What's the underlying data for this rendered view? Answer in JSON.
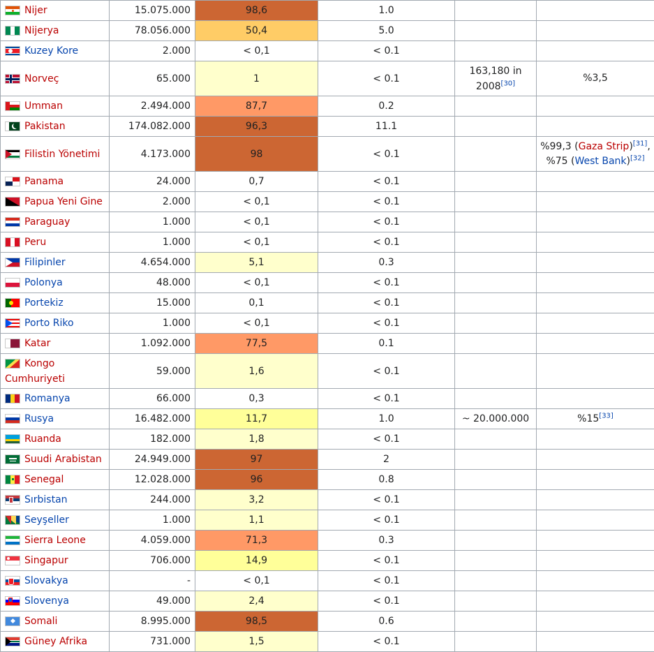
{
  "colors": {
    "scale": {
      "very_high": "#cc6633",
      "high": "#ff9966",
      "medium": "#ffcc66",
      "low": "#ffff99",
      "very_low": "#ffffcc",
      "none": "#ffffff"
    }
  },
  "rows": [
    {
      "country": "Nijer",
      "red": true,
      "flag_icon": "niger-flag-icon",
      "population": "15.075.000",
      "percent": "98,6",
      "shade": "very_high",
      "world": "1.0",
      "c5": "",
      "c6": ""
    },
    {
      "country": "Nijerya",
      "red": true,
      "flag_icon": "nigeria-flag-icon",
      "population": "78.056.000",
      "percent": "50,4",
      "shade": "medium",
      "world": "5.0",
      "c5": "",
      "c6": ""
    },
    {
      "country": "Kuzey Kore",
      "red": false,
      "flag_icon": "north-korea-flag-icon",
      "population": "2.000",
      "percent": "< 0,1",
      "shade": "none",
      "world": "< 0.1",
      "c5": "",
      "c6": ""
    },
    {
      "country": "Norveç",
      "red": true,
      "flag_icon": "norway-flag-icon",
      "population": "65.000",
      "percent": "1",
      "shade": "very_low",
      "world": "< 0.1",
      "c5": "163,180 in 2008",
      "c5_ref": "[30]",
      "c6": "%3,5",
      "tall": true
    },
    {
      "country": "Umman",
      "red": true,
      "flag_icon": "oman-flag-icon",
      "population": "2.494.000",
      "percent": "87,7",
      "shade": "high",
      "world": "0.2",
      "c5": "",
      "c6": ""
    },
    {
      "country": "Pakistan",
      "red": true,
      "flag_icon": "pakistan-flag-icon",
      "population": "174.082.000",
      "percent": "96,3",
      "shade": "very_high",
      "world": "11.1",
      "c5": "",
      "c6": ""
    },
    {
      "country": "Filistin Yönetimi",
      "red": true,
      "flag_icon": "palestine-flag-icon",
      "population": "4.173.000",
      "percent": "98",
      "shade": "very_high",
      "world": "< 0.1",
      "c5": "",
      "tall": true,
      "c6_parts": {
        "p1": "%99,3 (",
        "l1": "Gaza Strip",
        "p2": ")",
        "r1": "[31]",
        "p3": ",",
        "p4": "%75 (",
        "l2": "West Bank",
        "p5": ")",
        "r2": "[32]"
      }
    },
    {
      "country": "Panama",
      "red": true,
      "flag_icon": "panama-flag-icon",
      "population": "24.000",
      "percent": "0,7",
      "shade": "none",
      "world": "< 0.1",
      "c5": "",
      "c6": ""
    },
    {
      "country": "Papua Yeni Gine",
      "red": true,
      "flag_icon": "papua-new-guinea-flag-icon",
      "population": "2.000",
      "percent": "< 0,1",
      "shade": "none",
      "world": "< 0.1",
      "c5": "",
      "c6": ""
    },
    {
      "country": "Paraguay",
      "red": true,
      "flag_icon": "paraguay-flag-icon",
      "population": "1.000",
      "percent": "< 0,1",
      "shade": "none",
      "world": "< 0.1",
      "c5": "",
      "c6": ""
    },
    {
      "country": "Peru",
      "red": true,
      "flag_icon": "peru-flag-icon",
      "population": "1.000",
      "percent": "< 0,1",
      "shade": "none",
      "world": "< 0.1",
      "c5": "",
      "c6": ""
    },
    {
      "country": "Filipinler",
      "red": false,
      "flag_icon": "philippines-flag-icon",
      "population": "4.654.000",
      "percent": "5,1",
      "shade": "very_low",
      "world": "0.3",
      "c5": "",
      "c6": ""
    },
    {
      "country": "Polonya",
      "red": false,
      "flag_icon": "poland-flag-icon",
      "population": "48.000",
      "percent": "< 0,1",
      "shade": "none",
      "world": "< 0.1",
      "c5": "",
      "c6": ""
    },
    {
      "country": "Portekiz",
      "red": false,
      "flag_icon": "portugal-flag-icon",
      "population": "15.000",
      "percent": "0,1",
      "shade": "none",
      "world": "< 0.1",
      "c5": "",
      "c6": ""
    },
    {
      "country": "Porto Riko",
      "red": false,
      "flag_icon": "puerto-rico-flag-icon",
      "population": "1.000",
      "percent": "< 0,1",
      "shade": "none",
      "world": "< 0.1",
      "c5": "",
      "c6": ""
    },
    {
      "country": "Katar",
      "red": true,
      "flag_icon": "qatar-flag-icon",
      "population": "1.092.000",
      "percent": "77,5",
      "shade": "high",
      "world": "0.1",
      "c5": "",
      "c6": ""
    },
    {
      "country": "Kongo Cumhuriyeti",
      "red": true,
      "flag_icon": "congo-flag-icon",
      "population": "59.000",
      "percent": "1,6",
      "shade": "very_low",
      "world": "< 0.1",
      "c5": "",
      "c6": "",
      "tall": true,
      "wrap": true
    },
    {
      "country": "Romanya",
      "red": false,
      "flag_icon": "romania-flag-icon",
      "population": "66.000",
      "percent": "0,3",
      "shade": "none",
      "world": "< 0.1",
      "c5": "",
      "c6": ""
    },
    {
      "country": "Rusya",
      "red": false,
      "flag_icon": "russia-flag-icon",
      "population": "16.482.000",
      "percent": "11,7",
      "shade": "low",
      "world": "1.0",
      "c5": "~ 20.000.000",
      "c6": "%15",
      "c6_ref": "[33]"
    },
    {
      "country": "Ruanda",
      "red": true,
      "flag_icon": "rwanda-flag-icon",
      "population": "182.000",
      "percent": "1,8",
      "shade": "very_low",
      "world": "< 0.1",
      "c5": "",
      "c6": ""
    },
    {
      "country": "Suudi Arabistan",
      "red": true,
      "flag_icon": "saudi-arabia-flag-icon",
      "population": "24.949.000",
      "percent": "97",
      "shade": "very_high",
      "world": "2",
      "c5": "",
      "c6": ""
    },
    {
      "country": "Senegal",
      "red": true,
      "flag_icon": "senegal-flag-icon",
      "population": "12.028.000",
      "percent": "96",
      "shade": "very_high",
      "world": "0.8",
      "c5": "",
      "c6": ""
    },
    {
      "country": "Sırbistan",
      "red": false,
      "flag_icon": "serbia-flag-icon",
      "population": "244.000",
      "percent": "3,2",
      "shade": "very_low",
      "world": "< 0.1",
      "c5": "",
      "c6": ""
    },
    {
      "country": "Seyşeller",
      "red": false,
      "flag_icon": "seychelles-flag-icon",
      "population": "1.000",
      "percent": "1,1",
      "shade": "very_low",
      "world": "< 0.1",
      "c5": "",
      "c6": ""
    },
    {
      "country": "Sierra Leone",
      "red": true,
      "flag_icon": "sierra-leone-flag-icon",
      "population": "4.059.000",
      "percent": "71,3",
      "shade": "high",
      "world": "0.3",
      "c5": "",
      "c6": ""
    },
    {
      "country": "Singapur",
      "red": true,
      "flag_icon": "singapore-flag-icon",
      "population": "706.000",
      "percent": "14,9",
      "shade": "low",
      "world": "< 0.1",
      "c5": "",
      "c6": ""
    },
    {
      "country": "Slovakya",
      "red": false,
      "flag_icon": "slovakia-flag-icon",
      "population": "-",
      "percent": "< 0,1",
      "shade": "none",
      "world": "< 0.1",
      "c5": "",
      "c6": ""
    },
    {
      "country": "Slovenya",
      "red": false,
      "flag_icon": "slovenia-flag-icon",
      "population": "49.000",
      "percent": "2,4",
      "shade": "very_low",
      "world": "< 0.1",
      "c5": "",
      "c6": ""
    },
    {
      "country": "Somali",
      "red": true,
      "flag_icon": "somalia-flag-icon",
      "population": "8.995.000",
      "percent": "98,5",
      "shade": "very_high",
      "world": "0.6",
      "c5": "",
      "c6": ""
    },
    {
      "country": "Güney Afrika",
      "red": true,
      "flag_icon": "south-africa-flag-icon",
      "population": "731.000",
      "percent": "1,5",
      "shade": "very_low",
      "world": "< 0.1",
      "c5": "",
      "c6": ""
    }
  ]
}
